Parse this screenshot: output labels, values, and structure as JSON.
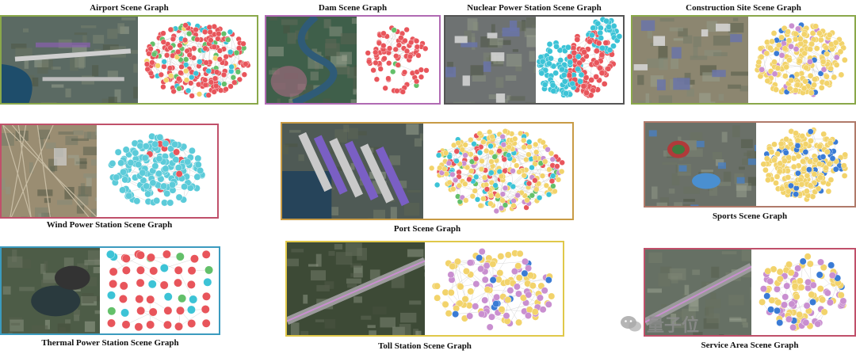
{
  "panels": [
    {
      "id": "airport",
      "title": "Airport Scene Graph",
      "border": "#8aa84a",
      "colors": [
        "#e8555b",
        "#63c06a",
        "#3cc3d6",
        "#f2d36b"
      ],
      "dist": [
        0.72,
        0.14,
        0.08,
        0.06
      ]
    },
    {
      "id": "dam",
      "title": "Dam Scene Graph",
      "border": "#b06ab3",
      "colors": [
        "#e8555b",
        "#63c06a"
      ],
      "dist": [
        0.95,
        0.05
      ]
    },
    {
      "id": "nuclear",
      "title": "Nuclear Power Station Scene Graph",
      "border": "#555555",
      "colors": [
        "#3cc3d6",
        "#e8555b",
        "#63c06a"
      ],
      "dist": [
        0.5,
        0.45,
        0.05
      ]
    },
    {
      "id": "construction",
      "title": "Construction Site Scene Graph",
      "border": "#8aa84a",
      "colors": [
        "#f2d36b",
        "#c98fd0",
        "#3a7bd5"
      ],
      "dist": [
        0.8,
        0.12,
        0.08
      ]
    },
    {
      "id": "wind",
      "title": "Wind Power Station Scene Graph",
      "border": "#c0506a",
      "colors": [
        "#5ccbd9",
        "#e8555b"
      ],
      "dist": [
        0.9,
        0.1
      ]
    },
    {
      "id": "port",
      "title": "Port Scene Graph",
      "border": "#c89b45",
      "colors": [
        "#f2d36b",
        "#e8555b",
        "#3cc3d6",
        "#63c06a",
        "#c98fd0"
      ],
      "dist": [
        0.52,
        0.18,
        0.16,
        0.07,
        0.07
      ]
    },
    {
      "id": "sports",
      "title": "Sports Scene Graph",
      "border": "#b07a6a",
      "colors": [
        "#f2d36b",
        "#3a7bd5"
      ],
      "dist": [
        0.85,
        0.15
      ]
    },
    {
      "id": "thermal",
      "title": "Thermal Power Station Scene Graph",
      "border": "#3b9bbf",
      "colors": [
        "#e8555b",
        "#63c06a",
        "#3cc3d6"
      ],
      "dist": [
        0.78,
        0.12,
        0.1
      ]
    },
    {
      "id": "toll",
      "title": "Toll Station Scene Graph",
      "border": "#e0c84a",
      "colors": [
        "#f2d36b",
        "#c98fd0",
        "#3a7bd5"
      ],
      "dist": [
        0.55,
        0.4,
        0.05
      ]
    },
    {
      "id": "service",
      "title": "Service Area Scene Graph",
      "border": "#c0506a",
      "colors": [
        "#f2d36b",
        "#c98fd0",
        "#3a7bd5"
      ],
      "dist": [
        0.55,
        0.35,
        0.1
      ]
    }
  ],
  "watermark": {
    "text": "量子位"
  }
}
